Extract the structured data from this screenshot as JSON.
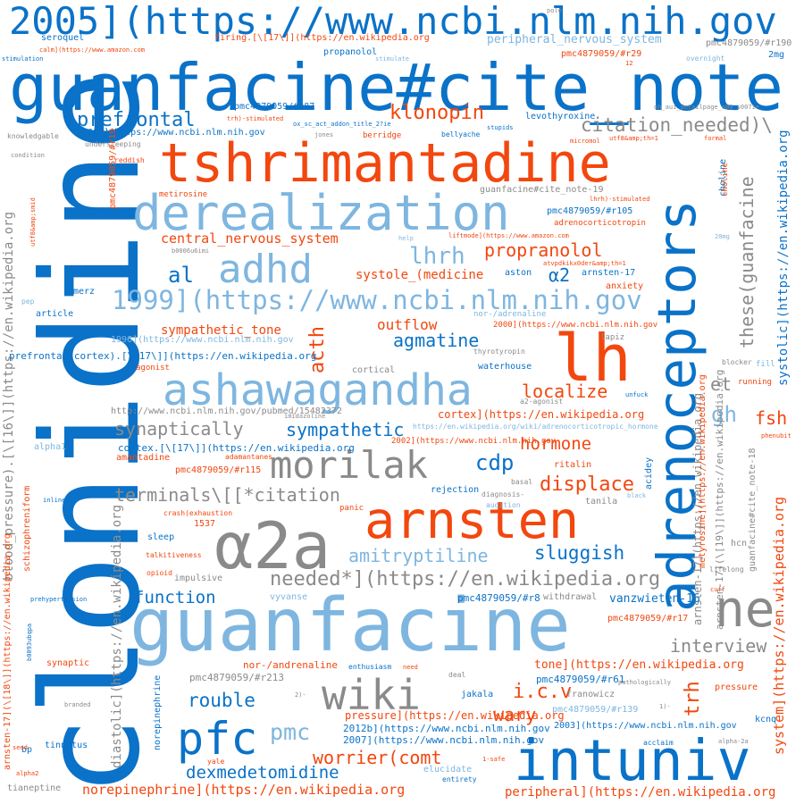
{
  "palette": {
    "dark_blue": "#0a72c8",
    "light_blue": "#7eb6e0",
    "orange": "#f2470f",
    "gray": "#8a8a8a",
    "background": "#ffffff"
  },
  "words": {
    "w001": "clonidine",
    "w002": "guanfacine#cite_note",
    "w003": "2005](https://www.ncbi.nlm.nih.gov",
    "w004": "guanfacine",
    "w005": "adrenoceptors",
    "w006": "tshrimantadine",
    "w007": "derealization",
    "w008": "intuniv",
    "w009": "arnsten",
    "w010": "α2a",
    "w011": "ashawagandha",
    "w012": "lh",
    "w013": "morilak",
    "w014": "wiki",
    "w015": "ne",
    "w016": "pfc",
    "w017": "adhd",
    "w018": "1999](https://www.ncbi.nlm.nih.gov",
    "w019": "needed*](https://en.wikipedia.org",
    "w020": "terminals\\[[*citation",
    "w021": "amitryptiline",
    "w022": "prefrontal",
    "w023": "klonopin",
    "w024": "citation_needed)\\",
    "w025": "propranolol",
    "w026": "lhrh",
    "w027": "agmatine",
    "w028": "acth",
    "w029": "central_nervous_system",
    "w030": "al",
    "w031": "α2",
    "w032": "systole_(medicine",
    "w033": "sympathetic_tone",
    "w034": "outflow",
    "w035": "localize",
    "w036": "synaptically",
    "w037": "sympathetic",
    "w038": "hormone",
    "w039": "cdp",
    "w040": "displace",
    "w041": "sluggish",
    "w042": "function",
    "w043": "interview",
    "w044": "rouble",
    "w045": "pmc",
    "w046": "i.c.v",
    "w047": "wary",
    "w048": "worrier(comt",
    "w049": "dexmedetomidine",
    "w050": "norepinephrine](https://en.wikipedia.org",
    "w051": "peripheral](https://en.wikipedia.org",
    "w052": "trh",
    "w053": "these(guanfacine",
    "w054": "et",
    "w055": "gh",
    "w056": "fsh",
    "w057": "system](https://en.wikipedia.org",
    "w058": "systolic](https://en.wikipedia.org",
    "w059": "arnsten-17](https://en.wikipedia.org",
    "w060": "guanfacine#cite_note-18",
    "w061": "tone](https://en.wikipedia.org",
    "w062": "vanzwieten-16",
    "w063": "pmc4879059/#r17",
    "w064": "pmc4879059/#r61",
    "w065": "pmc4879059/#r139",
    "w066": "pmc4879059/#r8",
    "w067": "pmc4879059/#r213",
    "w068": "2003](https://www.ncbi.nlm.nih.gov",
    "w069": "2012b](https://www.ncbi.nlm.nih.gov",
    "w070": "2007](https://www.ncbi.nlm.nih.gov",
    "w071": "pressure](https://en.wikipedia.org",
    "w072": "nor-/andrenaline",
    "w073": "2000](https://www.ncbi.nlm.nih.gov",
    "w074": "cortex](https://en.wikipedia.org",
    "w075": "cortex.[\\[17\\]](https://en.wikipedia.org",
    "w076": "prefrontal_cortex).[\\[17\\]](https://en.wikipedia.org",
    "w077": "1996](https://www.ncbi.nlm.nih.gov",
    "w078": "2002](https://www.ncbi.nlm.nih.gov",
    "w079": "http://www.ncbi.nlm.nih.gov/pubmed/15482372",
    "w080": "https://en.wikipedia.org/wiki/adrenocorticotropic_hormone",
    "w081": "firing.[\\[17\\]](https://en.wikipedia.org",
    "w082": "peripheral_nervous_system",
    "w083": "pmc4879059/#r190",
    "w084": "pmc4879059/#r29",
    "w085": "pmc4879059/#r87",
    "w086": "pmc4879059/#r105",
    "w087": "pmc4879059/#r115",
    "w088": "2006](https://www.ncbi.nlm.nih.gov",
    "w089": "guanfacine#cite_note-19",
    "w090": "liftmode](https://www.amazon.com",
    "w091": "calm](https://www.amazon.com",
    "w092": "seroquel",
    "w093": "propanolol",
    "w094": "levothyroxine",
    "w095": "adrenocorticotropin",
    "w096": "arnsten-17",
    "w097": "anxiety",
    "w098": "aston",
    "w099": "lapiz",
    "w100": "nor-/adrenaline",
    "w101": "thyrotyropin",
    "w102": "waterhouse",
    "w103": "a2-agonist",
    "w104": "ritalin",
    "w105": "rejection",
    "w106": "diagnosis-",
    "w107": "tanila",
    "w108": "panic",
    "w109": "audition",
    "w110": "basal",
    "w111": "amantadine",
    "w112": "adamantanes",
    "w113": "sleep",
    "w114": "1537",
    "w115": "crash(exhaustion",
    "w116": "talkitiveness",
    "w117": "opioid",
    "w118": "impulsive",
    "w119": "vyvanse",
    "w120": "withdrawal",
    "w121": "enthusiasm",
    "w122": "need",
    "w123": "deal",
    "w124": "jakala",
    "w125": "franowicz",
    "w126": "pathologically",
    "w127": "acclaim",
    "w128": "alpha-2a",
    "w129": "kcnq",
    "w130": "pressure",
    "w131": "elucidate",
    "w132": "entirety",
    "w133": "1-safe",
    "w134": "yale",
    "w135": "tinnitus",
    "w136": "bp",
    "w137": "branded",
    "w138": "tianeptine",
    "w139": "alpha2",
    "w140": "seed",
    "w141": "synaptic",
    "w142": "prehypertension",
    "w143": "schizophreniform",
    "w144": "alpha1",
    "w145": "inline",
    "w146": "merz",
    "w147": "article",
    "w148": "pep",
    "w149": "knowledgable",
    "w150": "condition",
    "w151": "reddish",
    "w152": "undersleeping",
    "w153": "metirosine",
    "w154": "stimulation",
    "w155": "pole",
    "w156": "stimulate",
    "w157": "overnight",
    "w158": "2mg",
    "w159": "oh_aui_detailpage_o00_s007ie",
    "w160": "ox_sc_act_addon_title_2?ie",
    "w161": "trh)-stimulated",
    "w162": "jones",
    "w163": "berridge",
    "w164": "bellyache",
    "w165": "stupids",
    "w166": "micromol",
    "w167": "utf8&amp;th=1",
    "w168": "formal",
    "w169": "choline",
    "w170": "lhrh)-stimulated",
    "w171": "20mg",
    "w172": "b0006u6imi",
    "w173": "help",
    "w174": "atvpdkikx0der&amp;th=1",
    "w175": "cortical",
    "w176": "agonist",
    "w177": "blocker",
    "w178": "fill",
    "w179": "running",
    "w180": "unfuck",
    "w181": "phenubit",
    "w182": "imidazoline",
    "w183": "black",
    "w184": "hcn",
    "w185": "lifelong",
    "w186": "cuff",
    "w187": "12",
    "w188": "1)-",
    "w189": "2)-",
    "w190": "diastolic](https://en.wikipedia.org",
    "w191": "blood_pressure).[\\[16\\]](https://en.wikipedia.org",
    "w192": "norepinephrine",
    "w193": "acidey",
    "w194": "metyrosine](https://en.wikipedia.org",
    "w195": "choline",
    "w196": "pmc4879059/#r19",
    "w197": "utf8&amp;smid",
    "w198": "arnsten-17](\\[18\\]](https://en.wikipedia.org",
    "w199": "b0093ubqpa",
    "w200": "arnsten-17](\\[19\\]](https://en.wikipedia.org"
  }
}
